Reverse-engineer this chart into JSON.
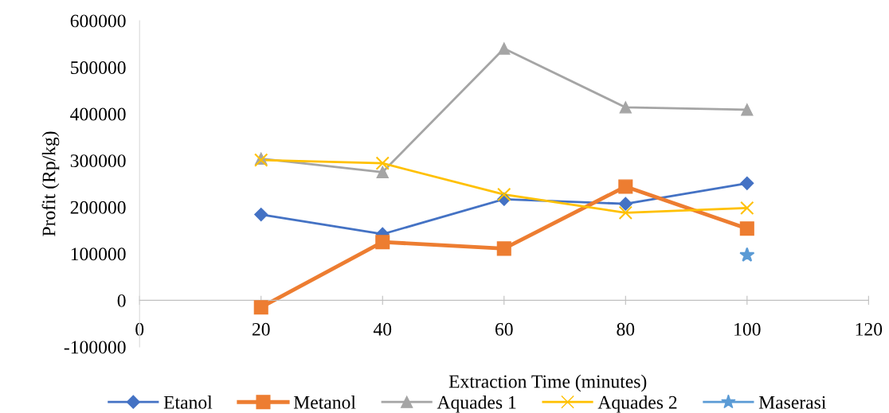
{
  "chart_data": {
    "type": "line",
    "xlabel": "Extraction Time (minutes)",
    "ylabel": "Profit (Rp/kg)",
    "x": [
      20,
      40,
      60,
      80,
      100
    ],
    "series": [
      {
        "name": "Etanol",
        "color": "#4472c4",
        "marker": "diamond",
        "values": [
          184000,
          142000,
          217000,
          207000,
          251000
        ]
      },
      {
        "name": "Metanol",
        "color": "#ed7d31",
        "marker": "square",
        "values": [
          -15000,
          125000,
          111000,
          244000,
          154000
        ]
      },
      {
        "name": "Aquades 1",
        "color": "#a5a5a5",
        "marker": "triangle",
        "values": [
          304000,
          275000,
          540000,
          414000,
          409000
        ]
      },
      {
        "name": "Aquades 2",
        "color": "#ffc000",
        "marker": "cross",
        "values": [
          301000,
          294000,
          227000,
          188000,
          198000
        ]
      },
      {
        "name": "Maserasi",
        "color": "#5b9bd5",
        "marker": "star",
        "values": [
          null,
          null,
          null,
          null,
          97000
        ]
      }
    ],
    "xlim": [
      0,
      120
    ],
    "xticks": [
      0,
      20,
      40,
      60,
      80,
      100,
      120
    ],
    "ylim": [
      -100000,
      600000
    ],
    "yticks": [
      -100000,
      0,
      100000,
      200000,
      300000,
      400000,
      500000,
      600000
    ],
    "grid": false,
    "legend": "bottom",
    "line_style": "solid"
  }
}
